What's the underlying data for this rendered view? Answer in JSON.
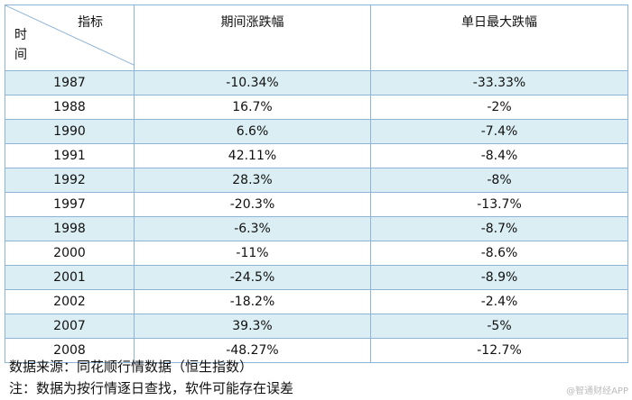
{
  "table": {
    "corner_column_label": "指标",
    "corner_row_label": "时间",
    "headers": [
      "期间涨跌幅",
      "单日最大跌幅"
    ],
    "rows": [
      [
        "1987",
        "-10.34%",
        "-33.33%"
      ],
      [
        "1988",
        "16.7%",
        "-2%"
      ],
      [
        "1990",
        "6.6%",
        "-7.4%"
      ],
      [
        "1991",
        "42.11%",
        "-8.4%"
      ],
      [
        "1992",
        "28.3%",
        "-8%"
      ],
      [
        "1997",
        "-20.3%",
        "-13.7%"
      ],
      [
        "1998",
        "-6.3%",
        "-8.7%"
      ],
      [
        "2000",
        "-11%",
        "-8.6%"
      ],
      [
        "2001",
        "-24.5%",
        "-8.9%"
      ],
      [
        "2002",
        "-18.2%",
        "-2.4%"
      ],
      [
        "2007",
        "39.3%",
        "-5%"
      ],
      [
        "2008",
        "-48.27%",
        "-12.7%"
      ]
    ]
  },
  "notes": [
    "数据来源：同花顺行情数据（恒生指数）",
    "注：数据为按行情逐日查找，软件可能存在误差"
  ],
  "watermark": "@智通财经APP"
}
